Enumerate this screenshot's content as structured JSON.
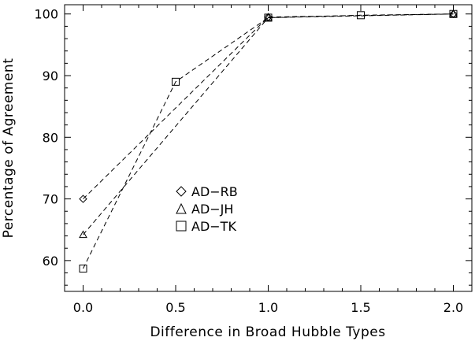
{
  "chart_data": {
    "type": "line",
    "xlabel": "Difference in Broad Hubble Types",
    "ylabel": "Percentage of Agreement",
    "xlim": [
      -0.1,
      2.1
    ],
    "ylim": [
      55,
      101.5
    ],
    "x_ticks": [
      0.0,
      0.5,
      1.0,
      1.5,
      2.0
    ],
    "x_tick_labels": [
      "0.0",
      "0.5",
      "1.0",
      "1.5",
      "2.0"
    ],
    "y_ticks": [
      60,
      70,
      80,
      90,
      100
    ],
    "y_tick_labels": [
      "60",
      "70",
      "80",
      "90",
      "100"
    ],
    "grid": false,
    "legend_position": "center",
    "line_style": "dashed",
    "series": [
      {
        "name": "AD−RB",
        "marker": "diamond",
        "x": [
          0.0,
          1.0,
          2.0
        ],
        "y": [
          70.0,
          99.5,
          100.0
        ]
      },
      {
        "name": "AD−JH",
        "marker": "triangle",
        "x": [
          0.0,
          1.0,
          2.0
        ],
        "y": [
          64.2,
          99.4,
          100.0
        ]
      },
      {
        "name": "AD−TK",
        "marker": "square",
        "x": [
          0.0,
          0.5,
          1.0,
          1.5,
          2.0
        ],
        "y": [
          58.7,
          89.0,
          99.4,
          99.8,
          100.0
        ]
      }
    ]
  }
}
